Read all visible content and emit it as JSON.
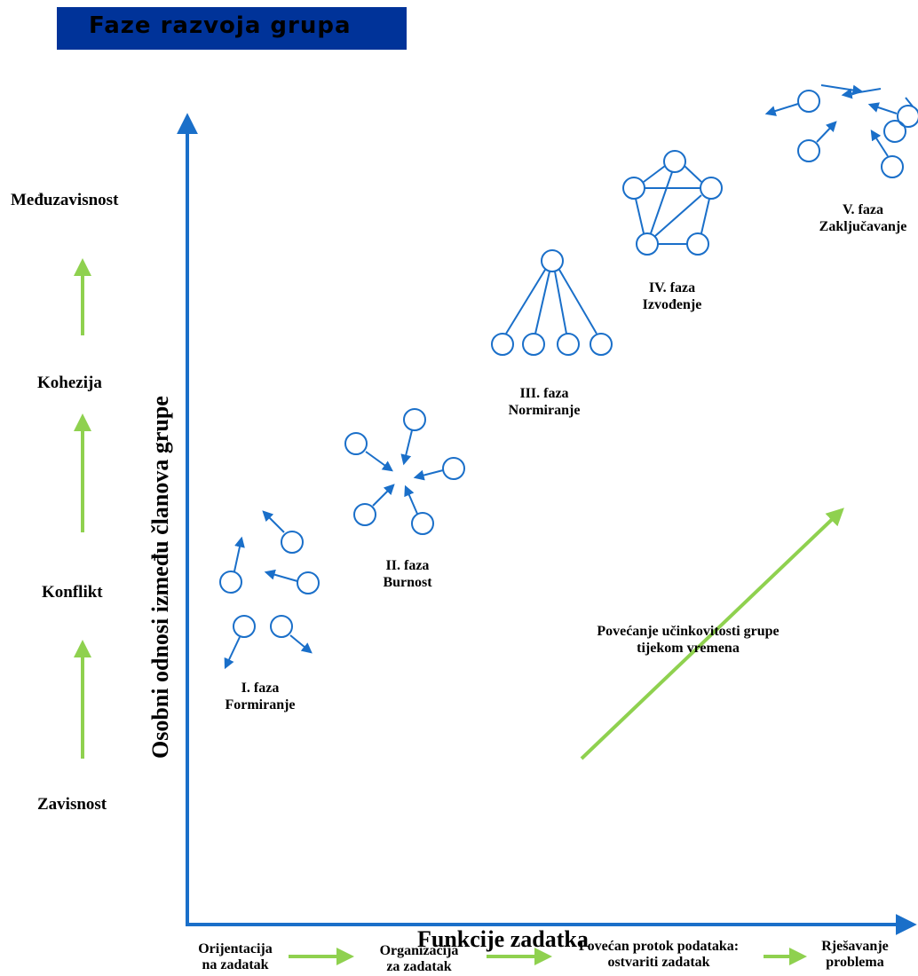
{
  "title": "Faze razvoja grupa",
  "y_axis_title": "Osobni odnosi između članova grupe",
  "x_axis_title": "Funkcije zadatka",
  "relationship_stages": [
    "Međuzavisnost",
    "Kohezija",
    "Konflikt",
    "Zavisnost"
  ],
  "task_stages": [
    {
      "line1": "Orijentacija",
      "line2": "na zadatak"
    },
    {
      "line1": "Organizacija",
      "line2": "za zadatak"
    },
    {
      "line1": "Povećan protok podataka:",
      "line2": "ostvariti zadatak"
    },
    {
      "line1": "Rješavanje",
      "line2": "problema"
    }
  ],
  "phases": [
    {
      "line1": "I. faza",
      "line2": "Formiranje"
    },
    {
      "line1": "II. faza",
      "line2": "Burnost"
    },
    {
      "line1": "III. faza",
      "line2": "Normiranje"
    },
    {
      "line1": "IV. faza",
      "line2": "Izvođenje"
    },
    {
      "line1": "V. faza",
      "line2": "Zaključavanje"
    }
  ],
  "trend_label": {
    "line1": "Povećanje učinkovitosti grupe",
    "line2": "tijekom vremena"
  },
  "colors": {
    "title_bg": "#003399",
    "axis": "#1a6fc9",
    "arrow_green": "#8fd14f",
    "node": "#1a6fc9"
  }
}
